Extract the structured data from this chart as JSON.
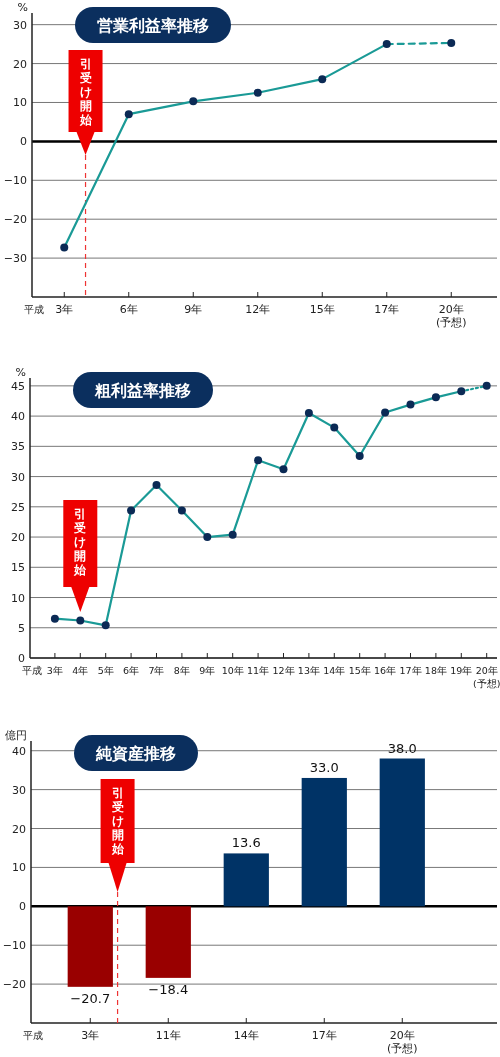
{
  "chart_data": [
    {
      "type": "line",
      "title": "営業利益率推移",
      "ylabel": "%",
      "xlabel": "平成",
      "categories": [
        "3年",
        "6年",
        "9年",
        "12年",
        "15年",
        "17年",
        "20年\n(予想)"
      ],
      "series": [
        {
          "color": "#1a9a96",
          "values": [
            -27.3,
            7,
            10.3,
            12.5,
            16,
            25,
            null
          ]
        },
        {
          "color": "#1a9a96",
          "line_style": "dashed",
          "values": [
            null,
            null,
            null,
            null,
            null,
            25,
            25.3
          ]
        }
      ],
      "marker": "circle",
      "ylim": [
        -40,
        33
      ],
      "yticks": [
        {
          "value": -30,
          "label": "−30"
        },
        {
          "value": -20,
          "label": "−20"
        },
        {
          "value": -10,
          "label": "−10"
        },
        0,
        10,
        20,
        30
      ],
      "grid": "y",
      "annotations": [
        "引受け開始"
      ]
    },
    {
      "type": "line",
      "title": "粗利益率推移",
      "ylabel": "%",
      "xlabel": "平成",
      "categories": [
        "3年",
        "4年",
        "5年",
        "6年",
        "7年",
        "8年",
        "9年",
        "10年",
        "11年",
        "12年",
        "13年",
        "14年",
        "15年",
        "16年",
        "17年",
        "18年",
        "19年",
        "20年\n(予想)"
      ],
      "series": [
        {
          "color": "#1a9a96",
          "values": [
            6.5,
            6.2,
            5.4,
            24.4,
            28.6,
            24.4,
            20,
            20.4,
            32.7,
            31.2,
            40.5,
            38.1,
            33.4,
            40.6,
            41.9,
            43.1,
            44.1,
            null
          ]
        },
        {
          "color": "#1a9a96",
          "line_style": "dotted",
          "values": [
            null,
            null,
            null,
            null,
            null,
            null,
            null,
            null,
            null,
            null,
            null,
            null,
            null,
            null,
            null,
            null,
            44.1,
            45
          ]
        }
      ],
      "marker": "circle",
      "ylim": [
        0,
        46.3
      ],
      "yticks": [
        0,
        5,
        10,
        15,
        20,
        25,
        30,
        35,
        40,
        45
      ],
      "grid": "y",
      "annotations": [
        "引受け開始"
      ]
    },
    {
      "type": "bar",
      "title": "純資産推移",
      "ylabel": "億円",
      "xlabel": "平成",
      "categories": [
        "3年",
        "11年",
        "14年",
        "17年",
        "20年\n(予想)"
      ],
      "values": [
        -20.7,
        -18.4,
        13.6,
        33.0,
        38.0
      ],
      "colors": [
        "#990000",
        "#990000",
        "#003366",
        "#003366",
        "#003366"
      ],
      "value_labels": [
        "−20.7",
        "−18.4",
        "13.6",
        "33.0",
        "38.0"
      ],
      "ylim": [
        -30,
        42.5
      ],
      "yticks": [
        {
          "value": -20,
          "label": "−20"
        },
        {
          "value": -10,
          "label": "−10"
        },
        0,
        10,
        20,
        30,
        40
      ],
      "grid": "y",
      "annotations": [
        "引受け開始"
      ]
    }
  ]
}
